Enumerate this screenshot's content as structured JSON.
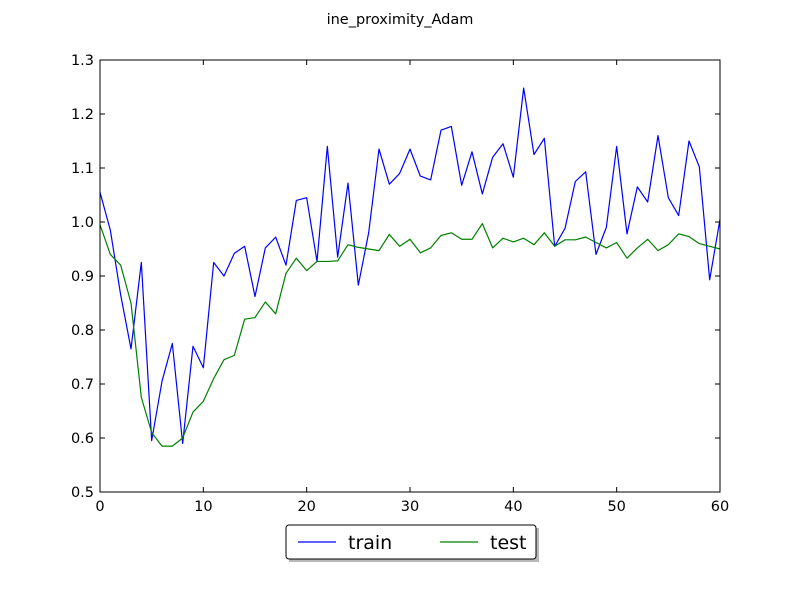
{
  "chart_data": {
    "type": "line",
    "title": "ine_proximity_Adam",
    "xlabel": "",
    "ylabel": "",
    "xlim": [
      0,
      60
    ],
    "ylim": [
      0.5,
      1.3
    ],
    "xticks": [
      "0",
      "10",
      "20",
      "30",
      "40",
      "50",
      "60"
    ],
    "yticks": [
      "0.5",
      "0.6",
      "0.7",
      "0.8",
      "0.9",
      "1.0",
      "1.1",
      "1.2",
      "1.3"
    ],
    "grid": false,
    "legend_position": "bottom-center-outside",
    "x": [
      0,
      1,
      2,
      3,
      4,
      5,
      6,
      7,
      8,
      9,
      10,
      11,
      12,
      13,
      14,
      15,
      16,
      17,
      18,
      19,
      20,
      21,
      22,
      23,
      24,
      25,
      26,
      27,
      28,
      29,
      30,
      31,
      32,
      33,
      34,
      35,
      36,
      37,
      38,
      39,
      40,
      41,
      42,
      43,
      44,
      45,
      46,
      47,
      48,
      49,
      50,
      51,
      52,
      53,
      54,
      55,
      56,
      57,
      58,
      59,
      60
    ],
    "series": [
      {
        "name": "train",
        "color": "#0000ff",
        "values": [
          1.055,
          0.985,
          0.865,
          0.765,
          0.925,
          0.595,
          0.705,
          0.775,
          0.59,
          0.77,
          0.73,
          0.925,
          0.9,
          0.942,
          0.955,
          0.862,
          0.952,
          0.972,
          0.92,
          1.04,
          1.045,
          0.927,
          1.14,
          0.935,
          1.072,
          0.883,
          0.98,
          1.135,
          1.07,
          1.09,
          1.135,
          1.085,
          1.078,
          1.17,
          1.177,
          1.068,
          1.13,
          1.052,
          1.12,
          1.145,
          1.083,
          1.248,
          1.125,
          1.155,
          0.955,
          0.988,
          1.075,
          1.093,
          0.94,
          0.99,
          1.14,
          0.978,
          1.065,
          1.037,
          1.16,
          1.045,
          1.012,
          1.15,
          1.102,
          0.893,
          1.005
        ]
      },
      {
        "name": "test",
        "color": "#008000",
        "values": [
          0.995,
          0.94,
          0.92,
          0.85,
          0.675,
          0.61,
          0.585,
          0.585,
          0.6,
          0.648,
          0.668,
          0.71,
          0.745,
          0.753,
          0.82,
          0.823,
          0.852,
          0.83,
          0.905,
          0.933,
          0.91,
          0.927,
          0.927,
          0.928,
          0.958,
          0.953,
          0.95,
          0.947,
          0.977,
          0.955,
          0.968,
          0.943,
          0.952,
          0.975,
          0.98,
          0.968,
          0.968,
          0.997,
          0.952,
          0.97,
          0.963,
          0.97,
          0.958,
          0.98,
          0.955,
          0.967,
          0.967,
          0.972,
          0.962,
          0.952,
          0.962,
          0.933,
          0.952,
          0.968,
          0.947,
          0.958,
          0.978,
          0.973,
          0.96,
          0.955,
          0.95
        ]
      }
    ]
  }
}
